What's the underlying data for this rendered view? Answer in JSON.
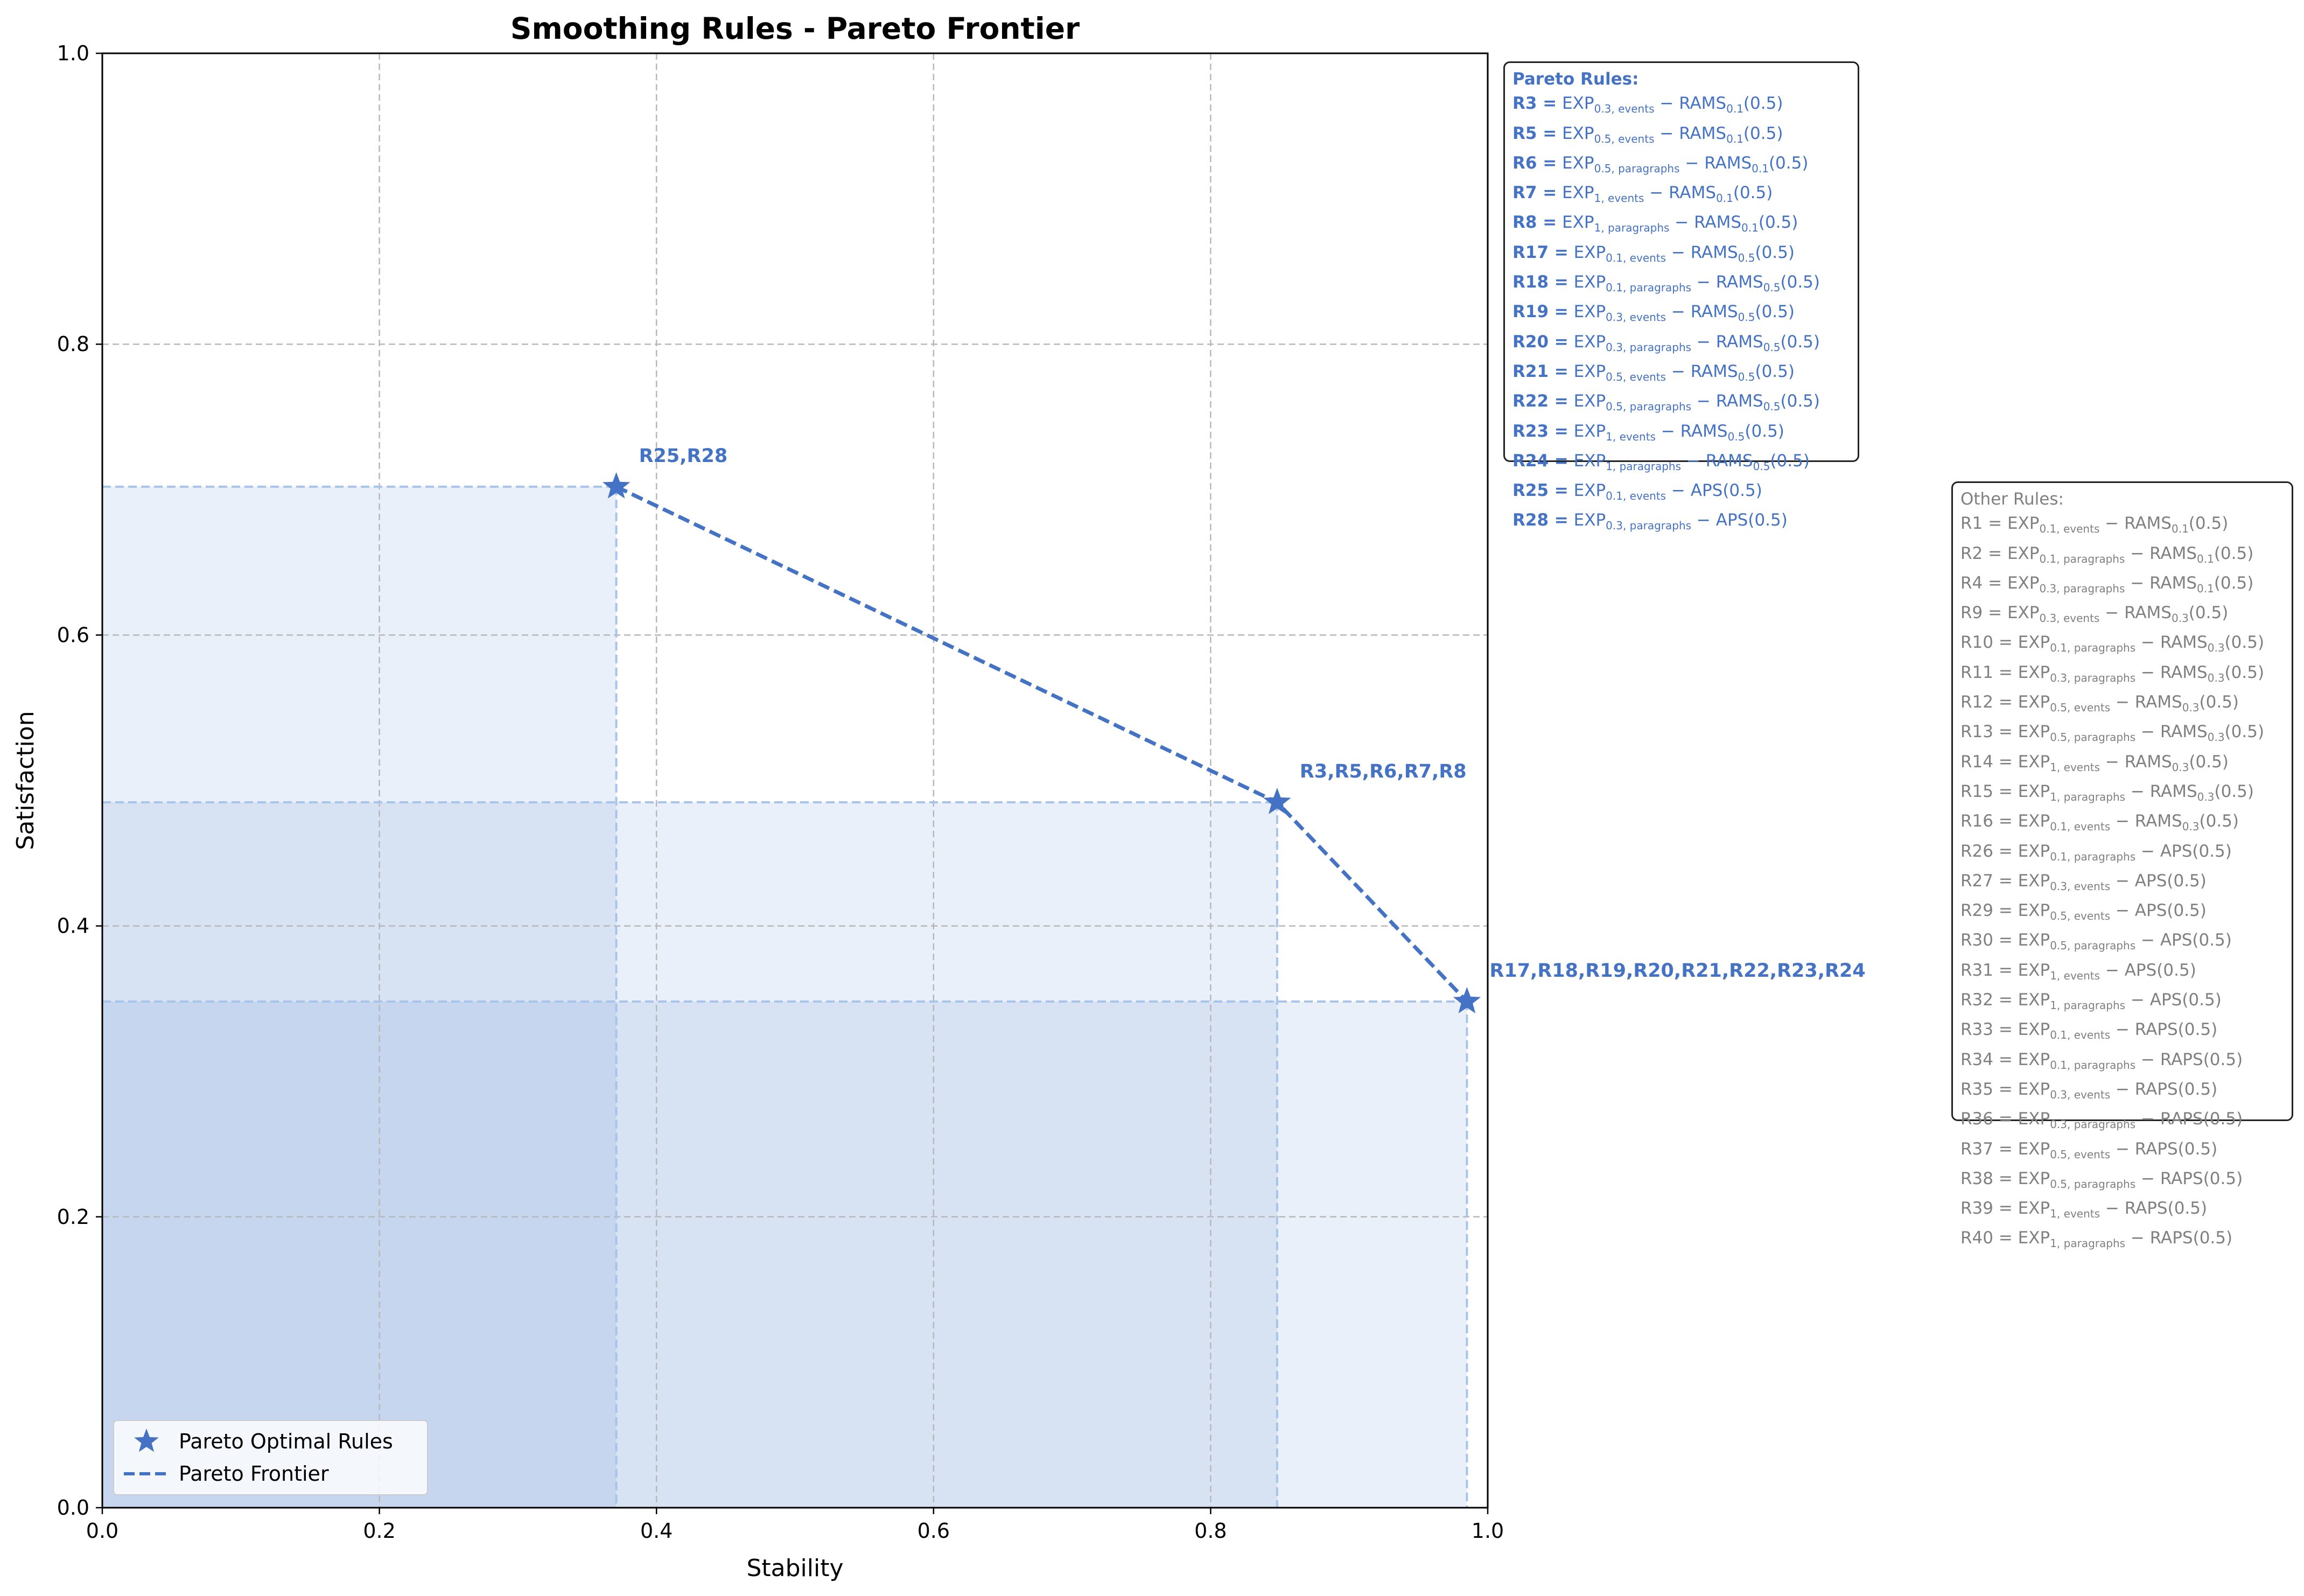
{
  "chart_data": {
    "type": "scatter",
    "title": "Smoothing Rules - Pareto Frontier",
    "xlabel": "Stability",
    "ylabel": "Satisfaction",
    "xlim": [
      0,
      1
    ],
    "ylim": [
      0,
      1
    ],
    "xticks": [
      "0.0",
      "0.2",
      "0.4",
      "0.6",
      "0.8",
      "1.0"
    ],
    "yticks": [
      "0.0",
      "0.2",
      "0.4",
      "0.6",
      "0.8",
      "1.0"
    ],
    "grid": true,
    "legend_position": "lower-left",
    "accent_color": "#4472c4",
    "series": [
      {
        "name": "Pareto Optimal Rules",
        "points": [
          {
            "x": 0.371,
            "y": 0.702,
            "label": "R25,R28"
          },
          {
            "x": 0.848,
            "y": 0.485,
            "label": "R3,R5,R6,R7,R8"
          },
          {
            "x": 0.985,
            "y": 0.348,
            "label": "R17,R18,R19,R20,R21,R22,R23,R24"
          }
        ]
      },
      {
        "name": "Pareto Frontier",
        "points": [
          {
            "x": 0.371,
            "y": 0.702
          },
          {
            "x": 0.848,
            "y": 0.485
          },
          {
            "x": 0.985,
            "y": 0.348
          }
        ]
      }
    ]
  },
  "pareto_rules": {
    "title": "Pareto Rules:",
    "items": [
      {
        "id": "R3 =",
        "exp_sub": "0.3, events",
        "tail": "RAMS",
        "tail_sub": "0.1",
        "arg": "(0.5)"
      },
      {
        "id": "R5 =",
        "exp_sub": "0.5, events",
        "tail": "RAMS",
        "tail_sub": "0.1",
        "arg": "(0.5)"
      },
      {
        "id": "R6 =",
        "exp_sub": "0.5, paragraphs",
        "tail": "RAMS",
        "tail_sub": "0.1",
        "arg": "(0.5)"
      },
      {
        "id": "R7 =",
        "exp_sub": "1, events",
        "tail": "RAMS",
        "tail_sub": "0.1",
        "arg": "(0.5)"
      },
      {
        "id": "R8 =",
        "exp_sub": "1, paragraphs",
        "tail": "RAMS",
        "tail_sub": "0.1",
        "arg": "(0.5)"
      },
      {
        "id": "R17 =",
        "exp_sub": "0.1, events",
        "tail": "RAMS",
        "tail_sub": "0.5",
        "arg": "(0.5)"
      },
      {
        "id": "R18 =",
        "exp_sub": "0.1, paragraphs",
        "tail": "RAMS",
        "tail_sub": "0.5",
        "arg": "(0.5)"
      },
      {
        "id": "R19 =",
        "exp_sub": "0.3, events",
        "tail": "RAMS",
        "tail_sub": "0.5",
        "arg": "(0.5)"
      },
      {
        "id": "R20 =",
        "exp_sub": "0.3, paragraphs",
        "tail": "RAMS",
        "tail_sub": "0.5",
        "arg": "(0.5)"
      },
      {
        "id": "R21 =",
        "exp_sub": "0.5, events",
        "tail": "RAMS",
        "tail_sub": "0.5",
        "arg": "(0.5)"
      },
      {
        "id": "R22 =",
        "exp_sub": "0.5, paragraphs",
        "tail": "RAMS",
        "tail_sub": "0.5",
        "arg": "(0.5)"
      },
      {
        "id": "R23 =",
        "exp_sub": "1, events",
        "tail": "RAMS",
        "tail_sub": "0.5",
        "arg": "(0.5)"
      },
      {
        "id": "R24 =",
        "exp_sub": "1, paragraphs",
        "tail": "RAMS",
        "tail_sub": "0.5",
        "arg": "(0.5)"
      },
      {
        "id": "R25 =",
        "exp_sub": "0.1, events",
        "tail": "APS",
        "tail_sub": "",
        "arg": "(0.5)"
      },
      {
        "id": "R28 =",
        "exp_sub": "0.3, paragraphs",
        "tail": "APS",
        "tail_sub": "",
        "arg": "(0.5)"
      }
    ]
  },
  "other_rules": {
    "title": "Other Rules:",
    "items": [
      {
        "id": "R1 =",
        "exp_sub": "0.1, events",
        "tail": "RAMS",
        "tail_sub": "0.1",
        "arg": "(0.5)"
      },
      {
        "id": "R2 =",
        "exp_sub": "0.1, paragraphs",
        "tail": "RAMS",
        "tail_sub": "0.1",
        "arg": "(0.5)"
      },
      {
        "id": "R4 =",
        "exp_sub": "0.3, paragraphs",
        "tail": "RAMS",
        "tail_sub": "0.1",
        "arg": "(0.5)"
      },
      {
        "id": "R9 =",
        "exp_sub": "0.3, events",
        "tail": "RAMS",
        "tail_sub": "0.3",
        "arg": "(0.5)"
      },
      {
        "id": "R10 =",
        "exp_sub": "0.1, paragraphs",
        "tail": "RAMS",
        "tail_sub": "0.3",
        "arg": "(0.5)"
      },
      {
        "id": "R11 =",
        "exp_sub": "0.3, paragraphs",
        "tail": "RAMS",
        "tail_sub": "0.3",
        "arg": "(0.5)"
      },
      {
        "id": "R12 =",
        "exp_sub": "0.5, events",
        "tail": "RAMS",
        "tail_sub": "0.3",
        "arg": "(0.5)"
      },
      {
        "id": "R13 =",
        "exp_sub": "0.5, paragraphs",
        "tail": "RAMS",
        "tail_sub": "0.3",
        "arg": "(0.5)"
      },
      {
        "id": "R14 =",
        "exp_sub": "1, events",
        "tail": "RAMS",
        "tail_sub": "0.3",
        "arg": "(0.5)"
      },
      {
        "id": "R15 =",
        "exp_sub": "1, paragraphs",
        "tail": "RAMS",
        "tail_sub": "0.3",
        "arg": "(0.5)"
      },
      {
        "id": "R16 =",
        "exp_sub": "0.1, events",
        "tail": "RAMS",
        "tail_sub": "0.3",
        "arg": "(0.5)"
      },
      {
        "id": "R26 =",
        "exp_sub": "0.1, paragraphs",
        "tail": "APS",
        "tail_sub": "",
        "arg": "(0.5)"
      },
      {
        "id": "R27 =",
        "exp_sub": "0.3, events",
        "tail": "APS",
        "tail_sub": "",
        "arg": "(0.5)"
      },
      {
        "id": "R29 =",
        "exp_sub": "0.5, events",
        "tail": "APS",
        "tail_sub": "",
        "arg": "(0.5)"
      },
      {
        "id": "R30 =",
        "exp_sub": "0.5, paragraphs",
        "tail": "APS",
        "tail_sub": "",
        "arg": "(0.5)"
      },
      {
        "id": "R31 =",
        "exp_sub": "1, events",
        "tail": "APS",
        "tail_sub": "",
        "arg": "(0.5)"
      },
      {
        "id": "R32 =",
        "exp_sub": "1, paragraphs",
        "tail": "APS",
        "tail_sub": "",
        "arg": "(0.5)"
      },
      {
        "id": "R33 =",
        "exp_sub": "0.1, events",
        "tail": "RAPS",
        "tail_sub": "",
        "arg": "(0.5)"
      },
      {
        "id": "R34 =",
        "exp_sub": "0.1, paragraphs",
        "tail": "RAPS",
        "tail_sub": "",
        "arg": "(0.5)"
      },
      {
        "id": "R35 =",
        "exp_sub": "0.3, events",
        "tail": "RAPS",
        "tail_sub": "",
        "arg": "(0.5)"
      },
      {
        "id": "R36 =",
        "exp_sub": "0.3, paragraphs",
        "tail": "RAPS",
        "tail_sub": "",
        "arg": "(0.5)"
      },
      {
        "id": "R37 =",
        "exp_sub": "0.5, events",
        "tail": "RAPS",
        "tail_sub": "",
        "arg": "(0.5)"
      },
      {
        "id": "R38 =",
        "exp_sub": "0.5, paragraphs",
        "tail": "RAPS",
        "tail_sub": "",
        "arg": "(0.5)"
      },
      {
        "id": "R39 =",
        "exp_sub": "1, events",
        "tail": "RAPS",
        "tail_sub": "",
        "arg": "(0.5)"
      },
      {
        "id": "R40 =",
        "exp_sub": "1, paragraphs",
        "tail": "RAPS",
        "tail_sub": "",
        "arg": "(0.5)"
      }
    ]
  },
  "legend": {
    "items": [
      {
        "label": "Pareto Optimal Rules",
        "icon": "star-marker-icon"
      },
      {
        "label": "Pareto Frontier",
        "icon": "dashed-line-icon"
      }
    ]
  }
}
